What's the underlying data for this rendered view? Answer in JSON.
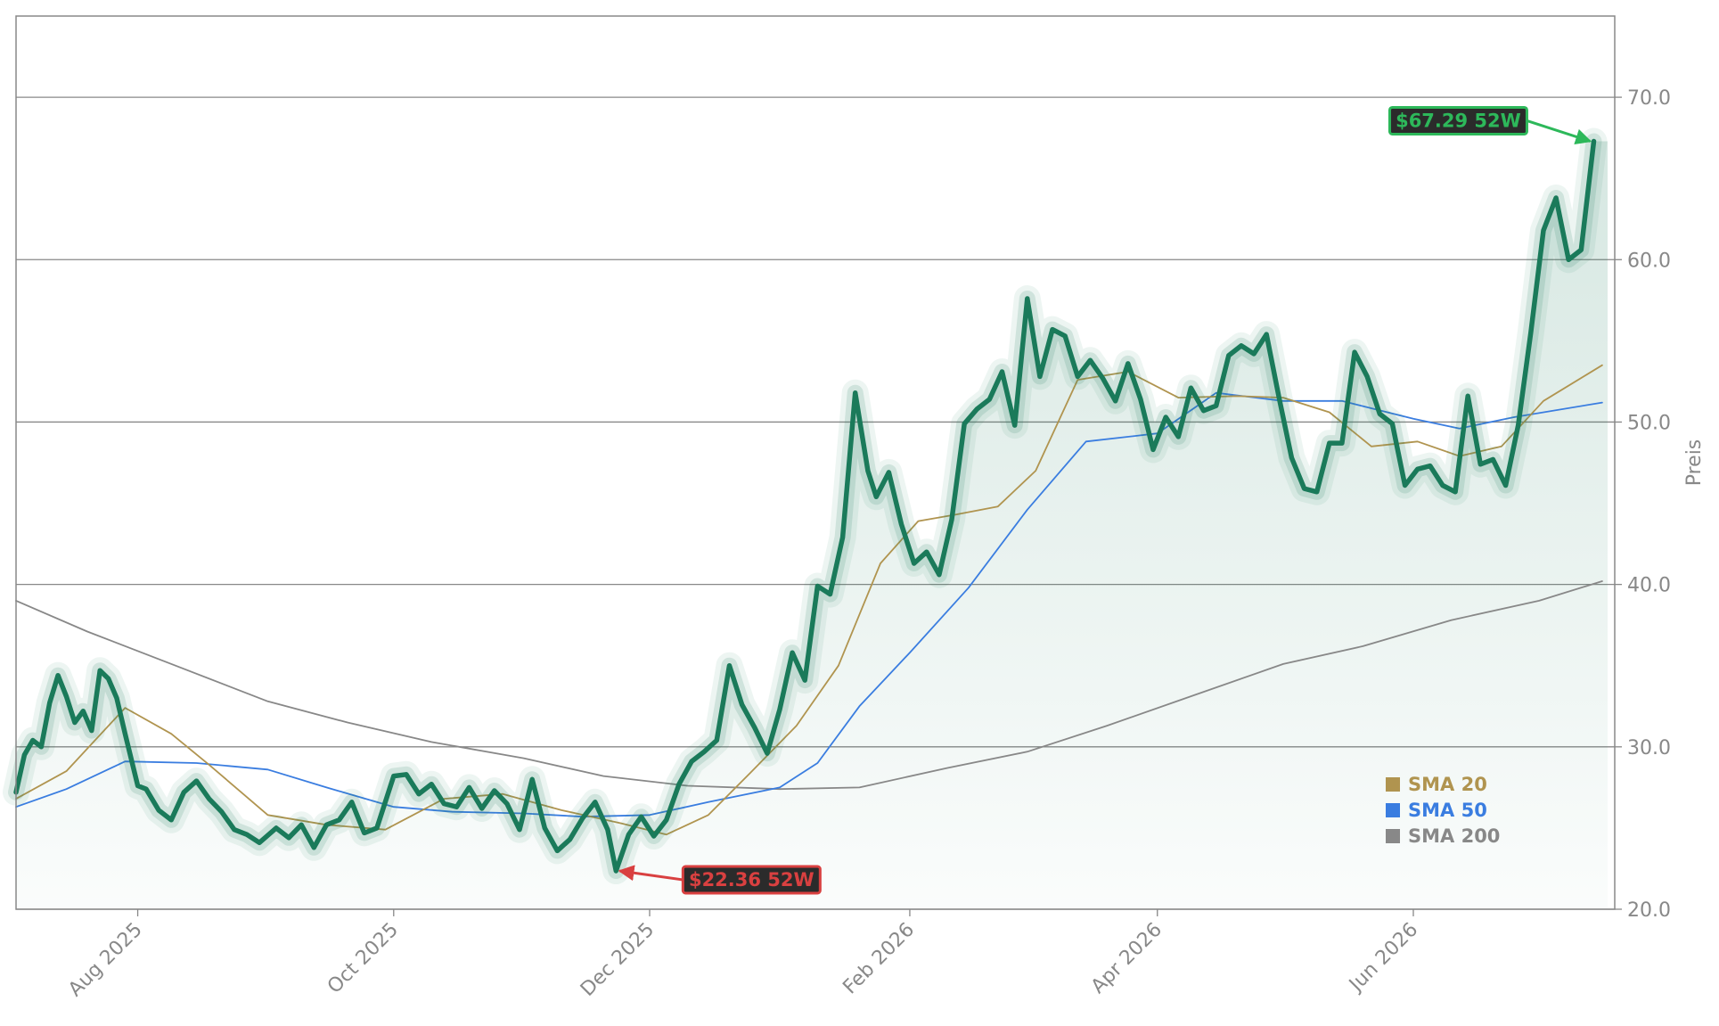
{
  "chart_data": {
    "type": "line",
    "title": "",
    "xlabel": "",
    "ylabel": "Preis",
    "ylim": [
      20.0,
      75.0
    ],
    "xlim": [
      "2025-07-03",
      "2026-07-19"
    ],
    "y_ticks": [
      "20.0",
      "30.0",
      "40.0",
      "50.0",
      "60.0",
      "70.0"
    ],
    "x_ticks": [
      {
        "date": "2025-08-01",
        "label": "Aug 2025"
      },
      {
        "date": "2025-10-01",
        "label": "Oct 2025"
      },
      {
        "date": "2025-12-01",
        "label": "Dec 2025"
      },
      {
        "date": "2026-02-01",
        "label": "Feb 2026"
      },
      {
        "date": "2026-04-01",
        "label": "Apr 2026"
      },
      {
        "date": "2026-06-01",
        "label": "Jun 2026"
      }
    ],
    "y_axis_side": "right",
    "grid": "horizontal",
    "colors": {
      "price": "#1a7a5a",
      "sma20": "#b0944f",
      "sma50": "#3a7de0",
      "sma200": "#888888",
      "high": "#2db85a",
      "low": "#d94040"
    },
    "annotations": [
      {
        "name": "high",
        "label": "$67.29 52W",
        "date": "2026-07-14",
        "value": 67.29
      },
      {
        "name": "low",
        "label": "$22.36 52W",
        "date": "2025-11-23",
        "value": 22.36
      }
    ],
    "legend": {
      "placement": "lower-right",
      "items": [
        {
          "key": "sma20",
          "label": "SMA 20"
        },
        {
          "key": "sma50",
          "label": "SMA 50"
        },
        {
          "key": "sma200",
          "label": "SMA 200"
        }
      ]
    },
    "series": [
      {
        "key": "price",
        "x": [
          "2025-07-03",
          "2025-07-05",
          "2025-07-07",
          "2025-07-09",
          "2025-07-11",
          "2025-07-13",
          "2025-07-15",
          "2025-07-17",
          "2025-07-19",
          "2025-07-21",
          "2025-07-23",
          "2025-07-25",
          "2025-07-27",
          "2025-07-29",
          "2025-08-01",
          "2025-08-03",
          "2025-08-06",
          "2025-08-09",
          "2025-08-12",
          "2025-08-15",
          "2025-08-18",
          "2025-08-21",
          "2025-08-24",
          "2025-08-27",
          "2025-08-30",
          "2025-09-03",
          "2025-09-06",
          "2025-09-09",
          "2025-09-12",
          "2025-09-15",
          "2025-09-18",
          "2025-09-21",
          "2025-09-24",
          "2025-09-27",
          "2025-10-01",
          "2025-10-04",
          "2025-10-07",
          "2025-10-10",
          "2025-10-13",
          "2025-10-16",
          "2025-10-19",
          "2025-10-22",
          "2025-10-25",
          "2025-10-28",
          "2025-10-31",
          "2025-11-03",
          "2025-11-06",
          "2025-11-09",
          "2025-11-12",
          "2025-11-15",
          "2025-11-18",
          "2025-11-21",
          "2025-11-23",
          "2025-11-26",
          "2025-11-29",
          "2025-12-02",
          "2025-12-05",
          "2025-12-08",
          "2025-12-11",
          "2025-12-14",
          "2025-12-17",
          "2025-12-20",
          "2025-12-23",
          "2025-12-26",
          "2025-12-29",
          "2026-01-01",
          "2026-01-04",
          "2026-01-07",
          "2026-01-10",
          "2026-01-13",
          "2026-01-16",
          "2026-01-19",
          "2026-01-22",
          "2026-01-24",
          "2026-01-27",
          "2026-01-30",
          "2026-02-02",
          "2026-02-05",
          "2026-02-08",
          "2026-02-11",
          "2026-02-14",
          "2026-02-17",
          "2026-02-20",
          "2026-02-23",
          "2026-02-26",
          "2026-03-01",
          "2026-03-04",
          "2026-03-07",
          "2026-03-10",
          "2026-03-13",
          "2026-03-16",
          "2026-03-19",
          "2026-03-22",
          "2026-03-25",
          "2026-03-28",
          "2026-03-31",
          "2026-04-03",
          "2026-04-06",
          "2026-04-09",
          "2026-04-12",
          "2026-04-15",
          "2026-04-18",
          "2026-04-21",
          "2026-04-24",
          "2026-04-27",
          "2026-04-30",
          "2026-05-03",
          "2026-05-06",
          "2026-05-09",
          "2026-05-12",
          "2026-05-15",
          "2026-05-18",
          "2026-05-21",
          "2026-05-24",
          "2026-05-27",
          "2026-05-30",
          "2026-06-02",
          "2026-06-05",
          "2026-06-08",
          "2026-06-11",
          "2026-06-14",
          "2026-06-17",
          "2026-06-20",
          "2026-06-23",
          "2026-06-26",
          "2026-06-29",
          "2026-07-02",
          "2026-07-05",
          "2026-07-08",
          "2026-07-11",
          "2026-07-14"
        ],
        "y": [
          27.2,
          29.5,
          30.4,
          30.0,
          32.7,
          34.4,
          33.1,
          31.5,
          32.2,
          31.0,
          34.7,
          34.2,
          33.0,
          30.8,
          27.6,
          27.4,
          26.1,
          25.5,
          27.2,
          27.9,
          26.8,
          26.0,
          24.9,
          24.6,
          24.1,
          25.0,
          24.4,
          25.2,
          23.8,
          25.2,
          25.5,
          26.6,
          24.7,
          25.0,
          28.2,
          28.3,
          27.1,
          27.7,
          26.5,
          26.3,
          27.5,
          26.2,
          27.3,
          26.5,
          24.9,
          28.0,
          25.0,
          23.6,
          24.3,
          25.6,
          26.6,
          24.9,
          22.36,
          24.6,
          25.7,
          24.5,
          25.5,
          27.7,
          29.1,
          29.7,
          30.4,
          35.0,
          32.6,
          31.2,
          29.6,
          32.3,
          35.8,
          34.1,
          39.9,
          39.4,
          42.9,
          51.8,
          47.0,
          45.4,
          46.9,
          43.7,
          41.3,
          42.0,
          40.6,
          44.0,
          49.9,
          50.8,
          51.4,
          53.1,
          49.8,
          57.6,
          52.8,
          55.7,
          55.3,
          52.8,
          53.8,
          52.7,
          51.3,
          53.6,
          51.4,
          48.3,
          50.3,
          49.1,
          52.1,
          50.7,
          51.0,
          54.1,
          54.7,
          54.2,
          55.4,
          51.5,
          47.8,
          45.9,
          45.7,
          48.7,
          48.7,
          54.3,
          52.8,
          50.5,
          49.9,
          46.1,
          47.1,
          47.3,
          46.1,
          45.7,
          51.6,
          47.4,
          47.7,
          46.1,
          49.8,
          55.5,
          61.8,
          63.8,
          60.0,
          60.6,
          67.29
        ]
      },
      {
        "key": "sma20",
        "x": [
          "2025-07-03",
          "2025-07-15",
          "2025-07-29",
          "2025-08-09",
          "2025-08-18",
          "2025-09-01",
          "2025-09-15",
          "2025-09-29",
          "2025-10-13",
          "2025-10-27",
          "2025-11-10",
          "2025-11-24",
          "2025-12-05",
          "2025-12-15",
          "2025-12-25",
          "2026-01-05",
          "2026-01-15",
          "2026-01-25",
          "2026-02-03",
          "2026-02-12",
          "2026-02-22",
          "2026-03-03",
          "2026-03-13",
          "2026-03-25",
          "2026-04-06",
          "2026-04-20",
          "2026-05-01",
          "2026-05-12",
          "2026-05-22",
          "2026-06-02",
          "2026-06-12",
          "2026-06-22",
          "2026-07-02",
          "2026-07-16"
        ],
        "y": [
          26.8,
          28.5,
          32.4,
          30.8,
          28.9,
          25.8,
          25.2,
          24.9,
          26.8,
          27.1,
          26.1,
          25.3,
          24.6,
          25.8,
          28.4,
          31.3,
          35.0,
          41.3,
          43.9,
          44.3,
          44.8,
          47.0,
          52.6,
          53.1,
          51.5,
          51.6,
          51.5,
          50.6,
          48.5,
          48.8,
          47.9,
          48.5,
          51.3,
          53.5
        ]
      },
      {
        "key": "sma50",
        "x": [
          "2025-07-03",
          "2025-07-15",
          "2025-07-29",
          "2025-08-15",
          "2025-09-01",
          "2025-09-15",
          "2025-10-01",
          "2025-10-15",
          "2025-11-01",
          "2025-11-15",
          "2025-12-01",
          "2025-12-15",
          "2026-01-01",
          "2026-01-10",
          "2026-01-20",
          "2026-02-01",
          "2026-02-15",
          "2026-03-01",
          "2026-03-15",
          "2026-04-01",
          "2026-04-15",
          "2026-05-01",
          "2026-05-15",
          "2026-06-01",
          "2026-06-12",
          "2026-06-25",
          "2026-07-16"
        ],
        "y": [
          26.3,
          27.4,
          29.1,
          29.0,
          28.6,
          27.5,
          26.3,
          26.0,
          25.9,
          25.7,
          25.8,
          26.6,
          27.5,
          29.0,
          32.5,
          35.8,
          39.8,
          44.6,
          48.8,
          49.3,
          51.8,
          51.3,
          51.3,
          50.2,
          49.6,
          50.3,
          51.2
        ]
      },
      {
        "key": "sma200",
        "x": [
          "2025-07-03",
          "2025-07-20",
          "2025-08-10",
          "2025-09-01",
          "2025-09-20",
          "2025-10-10",
          "2025-11-01",
          "2025-11-20",
          "2025-12-10",
          "2026-01-01",
          "2026-01-20",
          "2026-02-10",
          "2026-03-01",
          "2026-03-20",
          "2026-04-10",
          "2026-05-01",
          "2026-05-20",
          "2026-06-10",
          "2026-07-01",
          "2026-07-16"
        ],
        "y": [
          39.0,
          37.1,
          35.0,
          32.8,
          31.5,
          30.3,
          29.3,
          28.2,
          27.6,
          27.4,
          27.5,
          28.7,
          29.7,
          31.3,
          33.2,
          35.1,
          36.2,
          37.8,
          39.0,
          40.2
        ]
      }
    ]
  }
}
